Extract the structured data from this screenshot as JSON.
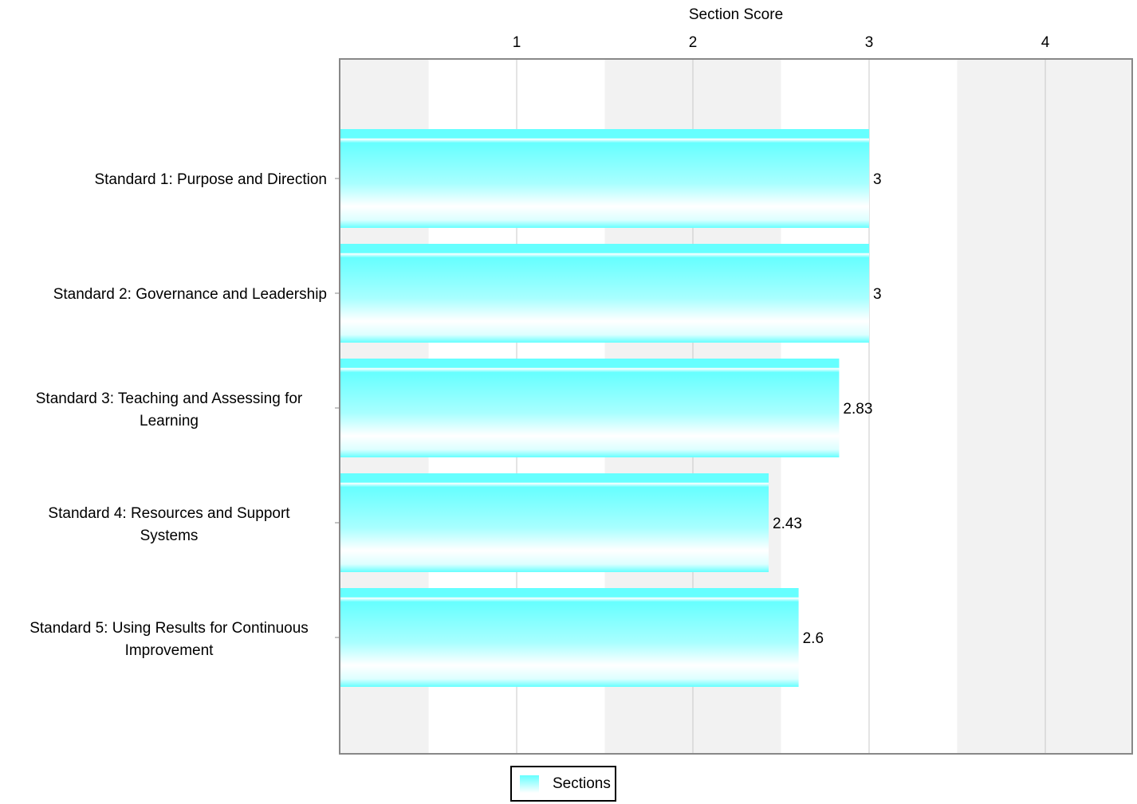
{
  "chart_data": {
    "type": "bar",
    "orientation": "horizontal",
    "x_axis_title": "Section Score",
    "x_axis_position": "top",
    "x_ticks": [
      1,
      2,
      3,
      4
    ],
    "xlim": [
      0,
      4.5
    ],
    "grid": true,
    "categories": [
      "Standard 1: Purpose and Direction",
      "Standard 2: Governance and Leadership",
      "Standard 3: Teaching and Assessing for Learning",
      "Standard 4: Resources and Support Systems",
      "Standard 5: Using Results for Continuous Improvement"
    ],
    "category_lines": [
      [
        "Standard 1: Purpose and Direction"
      ],
      [
        "Standard 2: Governance and Leadership"
      ],
      [
        "Standard 3: Teaching and Assessing for",
        "Learning"
      ],
      [
        "Standard 4: Resources and Support",
        "Systems"
      ],
      [
        "Standard 5: Using Results for Continuous",
        "Improvement"
      ]
    ],
    "series": [
      {
        "name": "Sections",
        "values": [
          3,
          3,
          2.83,
          2.43,
          2.6
        ]
      }
    ],
    "value_labels": [
      "3",
      "3",
      "2.83",
      "2.43",
      "2.6"
    ],
    "bar_color": "#66ffff",
    "legend": {
      "position": "bottom",
      "label": "Sections"
    }
  }
}
